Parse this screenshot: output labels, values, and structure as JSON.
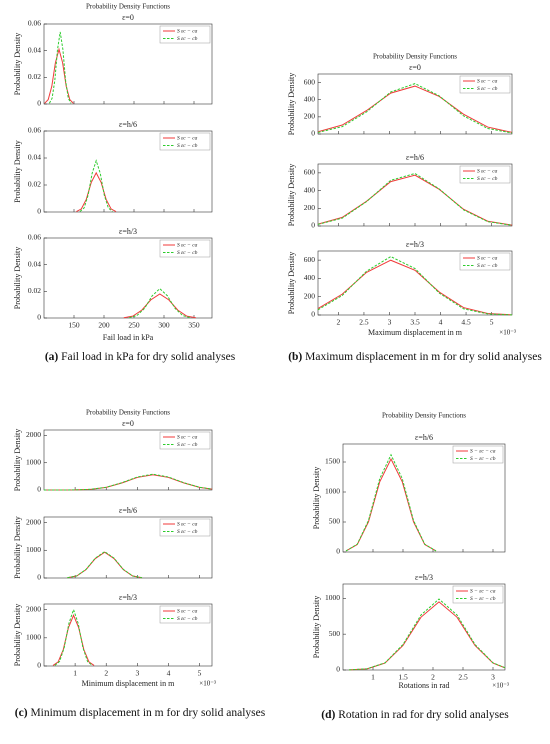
{
  "chart_data": [
    {
      "type": "line",
      "title": "Probability Density Functions",
      "ylabel": "Probability Density",
      "xlabel": "Fail load in kPa",
      "caption": {
        "label": "(a)",
        "text": "Fail load in kPa for dry solid analyses"
      },
      "xlim": [
        100,
        380
      ],
      "xticks": [
        150,
        200,
        250,
        300,
        350
      ],
      "panels": [
        {
          "subtitle": "ε=0",
          "ylim": [
            0,
            0.06
          ],
          "yticks": [
            0,
            0.02,
            0.04,
            0.06
          ],
          "series": [
            {
              "name": "S εc − ca",
              "color": "#f03a3a",
              "style": "solid",
              "x": [
                101,
                107,
                113,
                119,
                125,
                131,
                137,
                143,
                149
              ],
              "values": [
                0.0005,
                0.0033,
                0.0133,
                0.031,
                0.041,
                0.031,
                0.0133,
                0.0033,
                0.0005
              ]
            },
            {
              "name": "S εc − cb",
              "color": "#2ecc2e",
              "style": "dashed",
              "x": [
                109,
                113.5,
                118,
                122.5,
                127,
                131.5,
                136,
                140.5,
                145
              ],
              "values": [
                0.0006,
                0.0043,
                0.0176,
                0.0408,
                0.054,
                0.0408,
                0.0176,
                0.0043,
                0.0006
              ]
            }
          ]
        },
        {
          "subtitle": "ε=h/6",
          "ylim": [
            0,
            0.06
          ],
          "yticks": [
            0,
            0.02,
            0.04,
            0.06
          ],
          "series": [
            {
              "name": "S εc − ca",
              "color": "#f03a3a",
              "style": "solid",
              "x": [
                154,
                162.25,
                170.5,
                178.75,
                187,
                195.25,
                203.5,
                211.75,
                220
              ],
              "values": [
                0.0003,
                0.0023,
                0.0094,
                0.0219,
                0.029,
                0.0219,
                0.0094,
                0.0023,
                0.0003
              ]
            },
            {
              "name": "S εc − cb",
              "color": "#2ecc2e",
              "style": "dashed",
              "x": [
                160,
                166.75,
                173.5,
                180.25,
                187,
                193.75,
                200.5,
                207.25,
                214
              ],
              "values": [
                0.0004,
                0.003,
                0.0124,
                0.0287,
                0.038,
                0.0287,
                0.0124,
                0.003,
                0.0004
              ]
            }
          ]
        },
        {
          "subtitle": "ε=h/3",
          "ylim": [
            0,
            0.06
          ],
          "yticks": [
            0,
            0.02,
            0.04,
            0.06
          ],
          "series": [
            {
              "name": "S εc − ca",
              "color": "#f03a3a",
              "style": "solid",
              "x": [
                233,
                248,
                263,
                278,
                293,
                308,
                323,
                338,
                353
              ],
              "values": [
                0.0002,
                0.0014,
                0.0059,
                0.0136,
                0.018,
                0.0136,
                0.0059,
                0.0014,
                0.0002
              ]
            },
            {
              "name": "S εc − cb",
              "color": "#2ecc2e",
              "style": "dashed",
              "x": [
                242,
                254.75,
                267.5,
                280.25,
                293,
                305.75,
                318.5,
                331.25,
                344
              ],
              "values": [
                0.0002,
                0.0018,
                0.0072,
                0.0166,
                0.022,
                0.0166,
                0.0072,
                0.0018,
                0.0002
              ]
            }
          ]
        }
      ]
    },
    {
      "type": "line",
      "title": "Probability Density Functions",
      "ylabel": "Probability Density",
      "xlabel": "Maximum displacement in m",
      "x_multiplier": "×10⁻³",
      "caption": {
        "label": "(b)",
        "text": "Maximum displacement in m for dry solid analyses"
      },
      "xlim": [
        1.6,
        5.4
      ],
      "xticks": [
        2,
        2.5,
        3,
        3.5,
        4,
        4.5,
        5
      ],
      "panels": [
        {
          "subtitle": "ε=0",
          "ylim": [
            0,
            700
          ],
          "yticks": [
            0,
            200,
            400,
            600
          ],
          "series": [
            {
              "name": "S εc − ca",
              "color": "#f03a3a",
              "style": "solid",
              "x": [
                1.6,
                2.075,
                2.55,
                3.025,
                3.5,
                3.975,
                4.45,
                4.925,
                5.4
              ],
              "values": [
                26,
                105,
                273,
                477,
                559,
                438,
                231,
                81,
                19
              ]
            },
            {
              "name": "S εc − cb",
              "color": "#2ecc2e",
              "style": "dashed",
              "x": [
                1.6,
                2.075,
                2.55,
                3.025,
                3.5,
                3.975,
                4.45,
                4.925,
                5.4
              ],
              "values": [
                18,
                86,
                257,
                490,
                588,
                445,
                212,
                64,
                12
              ]
            }
          ]
        },
        {
          "subtitle": "ε=h/6",
          "ylim": [
            0,
            700
          ],
          "yticks": [
            0,
            200,
            400,
            600
          ],
          "series": [
            {
              "name": "S εc − ca",
              "color": "#f03a3a",
              "style": "solid",
              "x": [
                1.6,
                2.075,
                2.55,
                3.025,
                3.5,
                3.975,
                4.45,
                4.925,
                5.4
              ],
              "values": [
                21,
                97,
                279,
                501,
                574,
                414,
                189,
                54,
                10
              ]
            },
            {
              "name": "S εc − cb",
              "color": "#2ecc2e",
              "style": "dashed",
              "x": [
                1.6,
                2.075,
                2.55,
                3.025,
                3.5,
                3.975,
                4.45,
                4.925,
                5.4
              ],
              "values": [
                18,
                89,
                275,
                516,
                593,
                418,
                183,
                49,
                8
              ]
            }
          ]
        },
        {
          "subtitle": "ε=h/3",
          "ylim": [
            0,
            700
          ],
          "yticks": [
            0,
            200,
            400,
            600
          ],
          "series": [
            {
              "name": "S εc − ca",
              "color": "#f03a3a",
              "style": "solid",
              "x": [
                1.6,
                2.075,
                2.55,
                3.025,
                3.5,
                3.975,
                4.45,
                4.925,
                5.4
              ],
              "values": [
                70,
                228,
                466,
                599,
                489,
                251,
                81,
                17,
                2
              ]
            },
            {
              "name": "S εc − cb",
              "color": "#2ecc2e",
              "style": "dashed",
              "x": [
                1.6,
                2.075,
                2.55,
                3.025,
                3.5,
                3.975,
                4.45,
                4.925,
                5.4
              ],
              "values": [
                57,
                214,
                479,
                639,
                508,
                240,
                68,
                12,
                1
              ]
            }
          ]
        }
      ]
    },
    {
      "type": "line",
      "title": "Probability Density Functions",
      "ylabel": "Probability Density",
      "xlabel": "Minimum displacement in m",
      "x_multiplier": "×10⁻³",
      "caption": {
        "label": "(c)",
        "text": "Minimum displacement in m for dry solid analyses"
      },
      "xlim": [
        0,
        5.4
      ],
      "xticks": [
        1,
        2,
        3,
        4,
        5
      ],
      "panels": [
        {
          "subtitle": "ε=0",
          "ylim": [
            0,
            2200
          ],
          "yticks": [
            0,
            1000,
            2000
          ],
          "series": [
            {
              "name": "S εc − ca",
              "color": "#f03a3a",
              "style": "solid",
              "x": [
                0,
                1,
                1.5,
                2,
                2.5,
                3,
                3.5,
                4,
                4.5,
                5,
                5.4
              ],
              "values": [
                0,
                3,
                25,
                96,
                256,
                461,
                560,
                461,
                256,
                96,
                34
              ]
            },
            {
              "name": "S εc − cb",
              "color": "#2ecc2e",
              "style": "dashed",
              "x": [
                0,
                1,
                1.5,
                2,
                2.5,
                3,
                3.5,
                4,
                4.5,
                5,
                5.4
              ],
              "values": [
                0,
                3,
                26,
                100,
                266,
                477,
                580,
                477,
                266,
                100,
                35
              ]
            }
          ]
        },
        {
          "subtitle": "ε=h/6",
          "ylim": [
            0,
            2200
          ],
          "yticks": [
            0,
            1000,
            2000
          ],
          "series": [
            {
              "name": "S εc − ca",
              "color": "#f03a3a",
              "style": "solid",
              "x": [
                0.75,
                1.05,
                1.35,
                1.65,
                1.95,
                2.25,
                2.55,
                2.85,
                3.15
              ],
              "values": [
                10,
                72,
                302,
                702,
                930,
                702,
                302,
                72,
                10
              ]
            },
            {
              "name": "S εc − cb",
              "color": "#2ecc2e",
              "style": "dashed",
              "x": [
                0.75,
                1.05,
                1.35,
                1.65,
                1.95,
                2.25,
                2.55,
                2.85,
                3.15
              ],
              "values": [
                10,
                74,
                309,
                717,
                950,
                717,
                309,
                74,
                10
              ]
            }
          ]
        },
        {
          "subtitle": "ε=h/3",
          "ylim": [
            0,
            2200
          ],
          "yticks": [
            0,
            1000,
            2000
          ],
          "series": [
            {
              "name": "S εc − ca",
              "color": "#f03a3a",
              "style": "solid",
              "x": [
                0.29,
                0.455,
                0.62,
                0.785,
                0.95,
                1.115,
                1.28,
                1.445,
                1.61
              ],
              "values": [
                20,
                144,
                585,
                1359,
                1800,
                1359,
                585,
                144,
                20
              ]
            },
            {
              "name": "S εc − cb",
              "color": "#2ecc2e",
              "style": "dashed",
              "x": [
                0.35,
                0.5,
                0.65,
                0.8,
                0.95,
                1.1,
                1.25,
                1.4,
                1.55
              ],
              "values": [
                22,
                160,
                650,
                1510,
                2000,
                1510,
                650,
                160,
                22
              ]
            }
          ]
        }
      ]
    },
    {
      "type": "line",
      "title": "Probability Density Functions",
      "ylabel": "Probability Density",
      "xlabel": "Rotations in rad",
      "x_multiplier": "×10⁻³",
      "caption": {
        "label": "(d)",
        "text": "Rotation in rad for dry solid analyses"
      },
      "xlim": [
        0.5,
        3.2
      ],
      "xticks": [
        1,
        1.5,
        2,
        2.5,
        3
      ],
      "panels": [
        {
          "subtitle": "ε=h/6",
          "ylim": [
            0,
            1800
          ],
          "yticks": [
            0,
            500,
            1000,
            1500
          ],
          "series": [
            {
              "name": "S − εc − ca",
              "color": "#f03a3a",
              "style": "solid",
              "x": [
                0.55,
                0.7375,
                0.925,
                1.1125,
                1.3,
                1.4875,
                1.675,
                1.8625,
                2.05
              ],
              "values": [
                17,
                124,
                504,
                1170,
                1550,
                1170,
                504,
                124,
                17
              ]
            },
            {
              "name": "S − εc − cb",
              "color": "#2ecc2e",
              "style": "dashed",
              "x": [
                0.55,
                0.7375,
                0.925,
                1.1125,
                1.3,
                1.4875,
                1.675,
                1.8625,
                2.05
              ],
              "values": [
                18,
                130,
                527,
                1223,
                1620,
                1223,
                527,
                130,
                18
              ]
            }
          ]
        },
        {
          "subtitle": "ε=h/3",
          "ylim": [
            0,
            1200
          ],
          "yticks": [
            0,
            500,
            1000
          ],
          "series": [
            {
              "name": "S − εc − ca",
              "color": "#f03a3a",
              "style": "solid",
              "x": [
                0.6,
                0.9,
                1.2,
                1.5,
                1.8,
                2.1,
                2.4,
                2.7,
                3.0,
                3.2
              ],
              "values": [
                2,
                16,
                96,
                342,
                737,
                950,
                737,
                342,
                96,
                30
              ]
            },
            {
              "name": "S − εc − cb",
              "color": "#2ecc2e",
              "style": "dashed",
              "x": [
                0.6,
                0.9,
                1.2,
                1.5,
                1.8,
                2.1,
                2.4,
                2.7,
                3.0,
                3.2
              ],
              "values": [
                2,
                17,
                100,
                356,
                768,
                990,
                768,
                356,
                100,
                32
              ]
            }
          ]
        }
      ]
    }
  ]
}
